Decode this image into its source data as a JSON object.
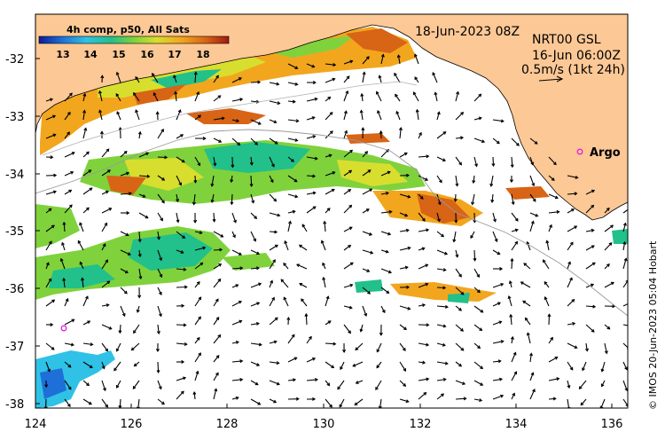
{
  "map": {
    "colorbar": {
      "title": "4h comp, p50, All Sats",
      "ticks": [
        "13",
        "14",
        "15",
        "16",
        "17",
        "18"
      ],
      "colors": [
        "#0a1a9a",
        "#1f6fd8",
        "#2fc2e6",
        "#22c08a",
        "#7fd23c",
        "#d8de2e",
        "#f2a61e",
        "#d86416",
        "#a01a10"
      ]
    },
    "date_label": "18-Jun-2023 08Z",
    "product_label": "NRT00 GSL",
    "time_label": "16-Jun 06:00Z",
    "scale_label": "0.5m/s (1kt 24h)",
    "argo_label": "Argo",
    "credit": "© IMOS 20-Jun-2023 05:04 Hobart",
    "x_ticks": [
      "124",
      "126",
      "128",
      "130",
      "132",
      "134",
      "136"
    ],
    "y_ticks": [
      "-32",
      "-33",
      "-34",
      "-35",
      "-36",
      "-37",
      "-38"
    ],
    "land_color": "#fcc895"
  }
}
